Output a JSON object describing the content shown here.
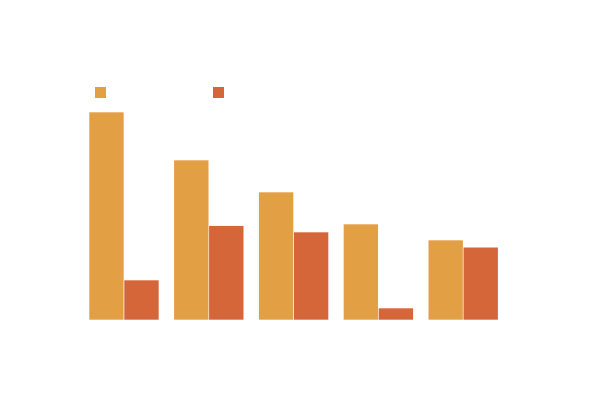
{
  "chart_data": {
    "type": "bar",
    "categories": [
      "",
      "",
      "",
      "",
      ""
    ],
    "series": [
      {
        "name": "",
        "color": "#e39f44",
        "values": [
          260,
          200,
          160,
          120,
          100
        ]
      },
      {
        "name": "",
        "color": "#d5663a",
        "values": [
          50,
          118,
          110,
          15,
          91
        ]
      }
    ],
    "title": "",
    "xlabel": "",
    "ylabel": "",
    "ylim": [
      0,
      280
    ],
    "grid": false,
    "legend_position": "top-left"
  }
}
